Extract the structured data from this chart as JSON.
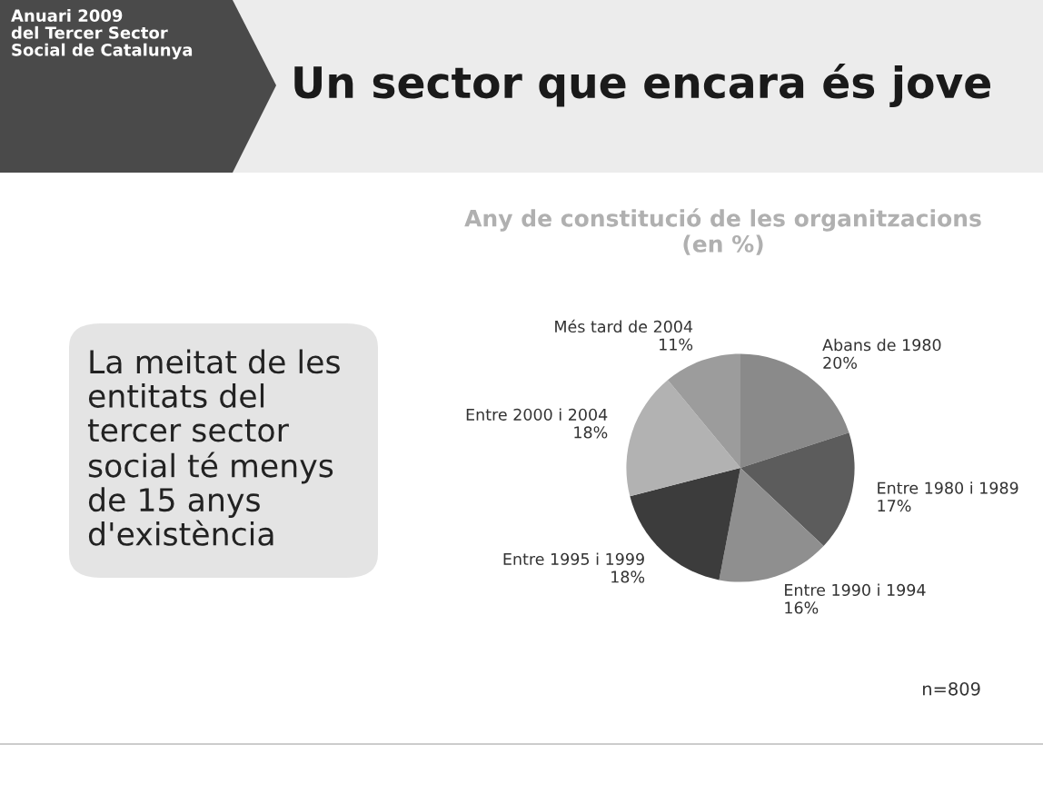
{
  "chart_data": {
    "type": "pie",
    "title": "Un sector que encara és jove",
    "subtitle": "Any de constitució de les organitzacions\n(en %)",
    "categories": [
      "Abans de 1980",
      "Entre 1980 i 1989",
      "Entre 1990 i 1994",
      "Entre 1995 i 1999",
      "Entre 2000 i 2004",
      "Més tard de 2004"
    ],
    "values": [
      20,
      17,
      16,
      18,
      18,
      11
    ],
    "value_labels": [
      "20%",
      "17%",
      "16%",
      "18%",
      "18%",
      "11%"
    ],
    "colors": [
      "#8a8a8a",
      "#5c5c5c",
      "#8f8f8f",
      "#3c3c3c",
      "#b2b2b2",
      "#9c9c9c"
    ],
    "annotations": [
      "Anuari 2009\ndel Tercer Sector\nSocial de Catalunya",
      "La meitat de les\nentitats del\ntercer sector\nsocial té menys\nde 15 anys\nd'existència",
      "n=809"
    ],
    "legend": false
  }
}
